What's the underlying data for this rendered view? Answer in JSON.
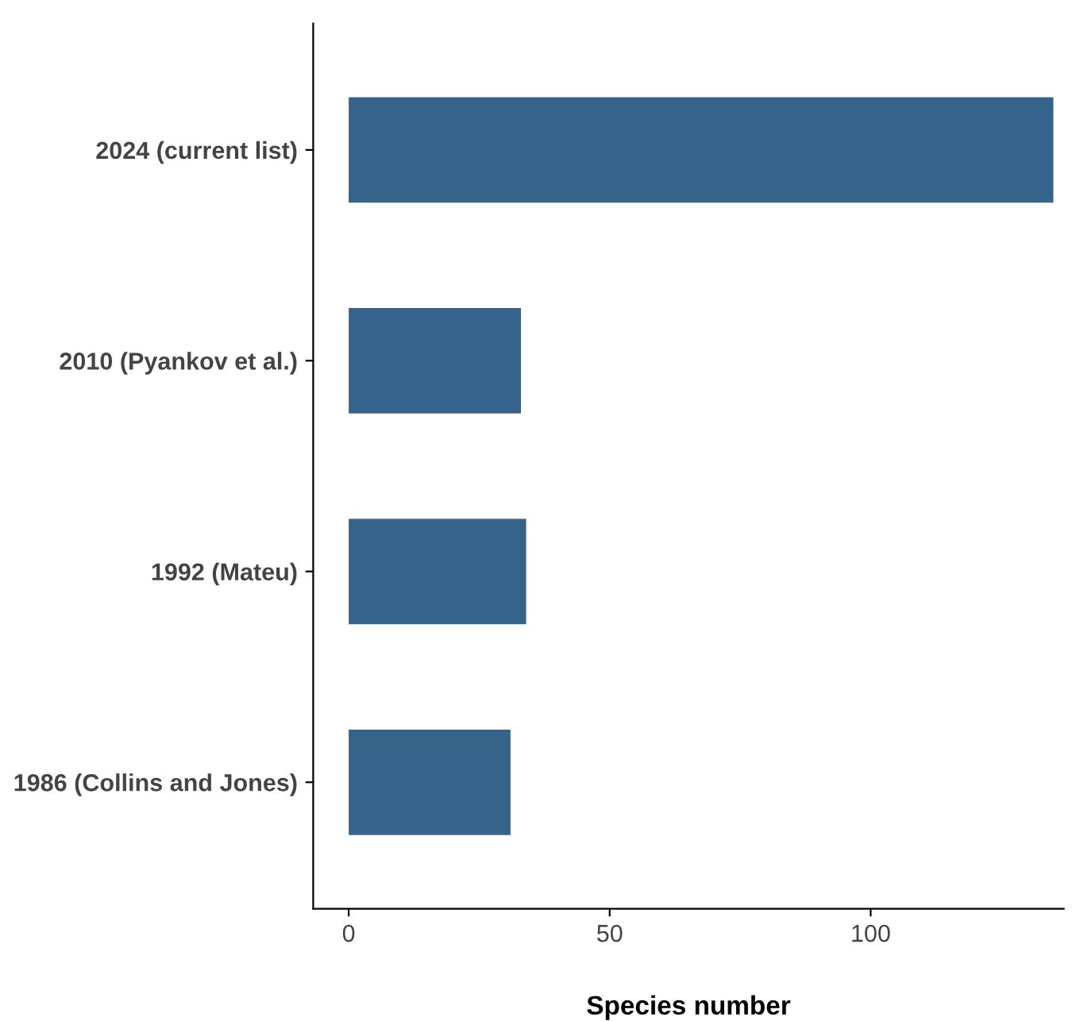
{
  "chart_data": {
    "type": "bar",
    "orientation": "horizontal",
    "xlabel": "Species number",
    "categories": [
      "2024 (current list)",
      "2010 (Pyankov et al.)",
      "1992 (Mateu)",
      "1986 (Collins and Jones)"
    ],
    "values": [
      135,
      33,
      34,
      31
    ],
    "color": "#35638a",
    "xlim": [
      -6.8,
      137
    ],
    "xticks": [
      0,
      50,
      100
    ],
    "grid": false
  }
}
